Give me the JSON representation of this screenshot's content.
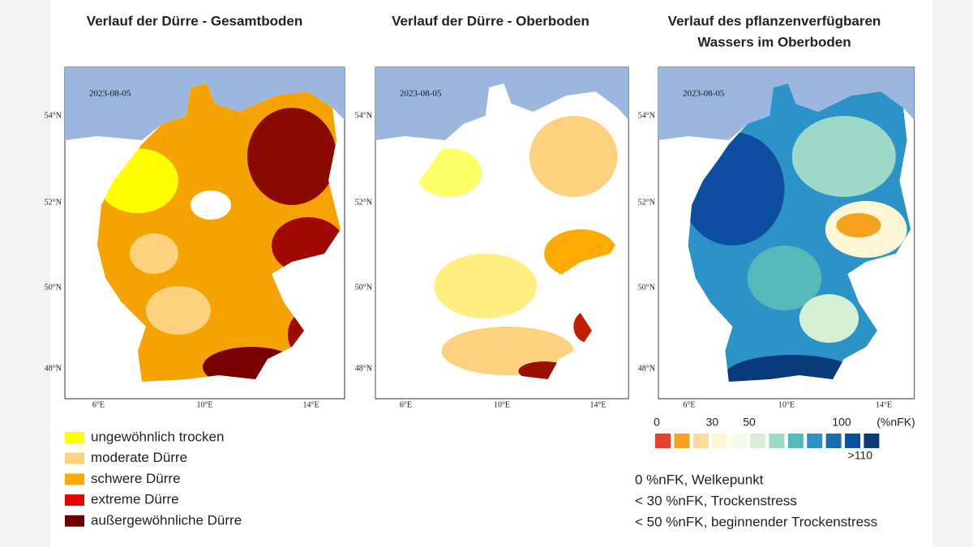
{
  "maps": [
    {
      "title": [
        "Verlauf der Dürre - Gesamtboden"
      ],
      "date": "2023-08-05"
    },
    {
      "title": [
        "Verlauf der Dürre - Oberboden"
      ],
      "date": "2023-08-05"
    },
    {
      "title": [
        "Verlauf des pflanzenverfügbaren",
        "Wassers im Oberboden"
      ],
      "date": "2023-08-05"
    }
  ],
  "lat_labels": [
    "54°N",
    "52°N",
    "50°N",
    "48°N"
  ],
  "lon_labels": [
    "6°E",
    "10°E",
    "14°E"
  ],
  "drought_legend": [
    {
      "label": "ungewöhnlich trocken",
      "color": "#ffff00"
    },
    {
      "label": "moderate Dürre",
      "color": "#fcd27f"
    },
    {
      "label": "schwere Dürre",
      "color": "#ffaa00"
    },
    {
      "label": "extreme Dürre",
      "color": "#e60000"
    },
    {
      "label": "außergewöhnliche Dürre",
      "color": "#730000"
    }
  ],
  "colorbar": {
    "unit": "(%nFK)",
    "ticks": [
      0,
      30,
      50,
      100,
      {
        "value": 110,
        "label": ">110"
      }
    ],
    "colors": [
      "#e8412c",
      "#f5a31c",
      "#fddc9b",
      "#fef7d6",
      "#f4fbe9",
      "#d6eed2",
      "#9ed8c6",
      "#55b9b9",
      "#2b93c7",
      "#1a6db3",
      "#0d4ea0",
      "#0a3a7a"
    ]
  },
  "notes": [
    "0 %nFK, Welkepunkt",
    "< 30 %nFK, Trockenstress",
    "< 50 %nFK, beginnender Trockenstress"
  ]
}
